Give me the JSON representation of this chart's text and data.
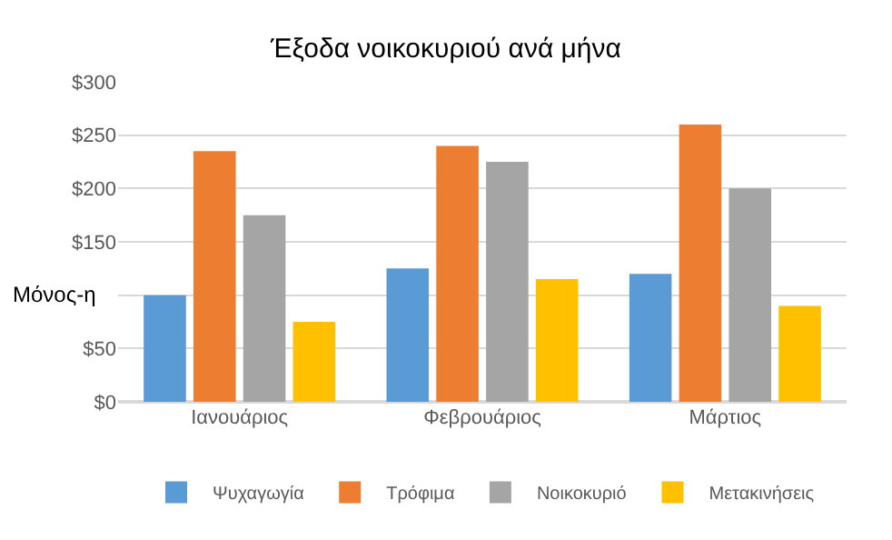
{
  "chart_data": {
    "type": "bar",
    "title": "Έξοδα νοικοκυριού ανά μήνα",
    "categories": [
      "Ιανουάριος",
      "Φεβρουάριος",
      "Μάρτιος"
    ],
    "series": [
      {
        "name": "Ψυχαγωγία",
        "color": "#5b9bd5",
        "values": [
          100,
          125,
          120
        ]
      },
      {
        "name": "Τρόφιμα",
        "color": "#ed7d31",
        "values": [
          235,
          240,
          260
        ]
      },
      {
        "name": "Νοικοκυριό",
        "color": "#a5a5a5",
        "values": [
          175,
          225,
          200
        ]
      },
      {
        "name": "Μετακινήσεις",
        "color": "#ffc000",
        "values": [
          75,
          115,
          90
        ]
      }
    ],
    "ylim": [
      0,
      300
    ],
    "yticks": [
      {
        "value": 0,
        "label": "$0"
      },
      {
        "value": 50,
        "label": "$50"
      },
      {
        "value": 100,
        "label": null
      },
      {
        "value": 150,
        "label": "$150"
      },
      {
        "value": 200,
        "label": "$200"
      },
      {
        "value": 250,
        "label": "$250"
      },
      {
        "value": 300,
        "label": "$300"
      }
    ],
    "annotations": [
      "Μόνος-η"
    ],
    "grid": "y",
    "legend": "bottom"
  }
}
